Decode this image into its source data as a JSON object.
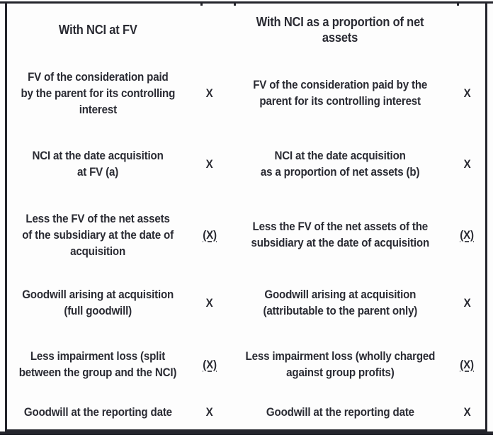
{
  "colors": {
    "text": "#2a2b33",
    "border": "#23242b",
    "background": "#fdfdfd"
  },
  "table": {
    "headers": {
      "left": "With NCI at FV",
      "right": "With NCI as a proportion of net\nassets"
    },
    "rows": [
      {
        "left_label": "FV of the consideration paid\nby the parent for its controlling\ninterest",
        "left_value": "X",
        "right_label": "FV of the consideration paid by the\nparent for its controlling interest",
        "right_value": "X"
      },
      {
        "left_label": "NCI at the date acquisition\nat FV (a)",
        "left_value": "X",
        "right_label": "NCI at the date acquisition\nas a proportion of net assets (b)",
        "right_value": "X"
      },
      {
        "left_label": "Less the FV of the net assets\nof the subsidiary at the date of\nacquisition",
        "left_value": "(X)",
        "right_label": "Less the FV of the net assets of the\nsubsidiary at the date of acquisition",
        "right_value": "(X)"
      },
      {
        "left_label": "Goodwill arising at acquisition\n(full goodwill)",
        "left_value": "X",
        "right_label": "Goodwill arising at acquisition\n(attributable to the parent only)",
        "right_value": "X"
      },
      {
        "left_label": "Less impairment loss (split\nbetween the group and the NCI)",
        "left_value": "(X)",
        "right_label": "Less impairment loss (wholly charged\nagainst group profits)",
        "right_value": "(X)"
      },
      {
        "left_label": "Goodwill at the reporting date",
        "left_value": "X",
        "right_label": "Goodwill at the reporting date",
        "right_value": "X"
      }
    ]
  }
}
